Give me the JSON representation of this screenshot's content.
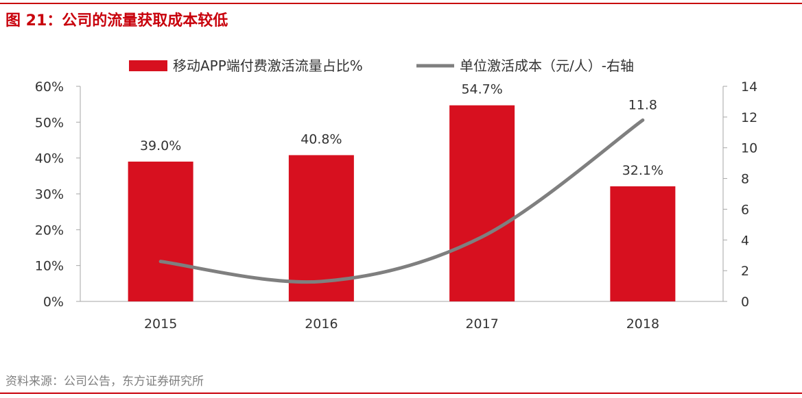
{
  "header": {
    "title": "图 21：公司的流量获取成本较低"
  },
  "footer": {
    "source": "资料来源：公司公告，东方证券研究所"
  },
  "chart_data": {
    "type": "bar",
    "categories": [
      "2015",
      "2016",
      "2017",
      "2018"
    ],
    "series": [
      {
        "name": "移动APP端付费激活流量占比%",
        "type": "bar",
        "axis": "left",
        "values": [
          39.0,
          40.8,
          54.7,
          32.1
        ],
        "labels": [
          "39.0%",
          "40.8%",
          "54.7%",
          "32.1%"
        ],
        "color": "#d7101f"
      },
      {
        "name": "单位激活成本（元/人）-右轴",
        "type": "line",
        "axis": "right",
        "values": [
          2.6,
          1.3,
          4.2,
          11.8
        ],
        "labels": [
          "",
          "",
          "",
          "11.8"
        ],
        "color": "#7f7f7f"
      }
    ],
    "y_left": {
      "min": 0,
      "max": 60,
      "ticks": [
        "0%",
        "10%",
        "20%",
        "30%",
        "40%",
        "50%",
        "60%"
      ]
    },
    "y_right": {
      "min": 0,
      "max": 14,
      "ticks": [
        "0",
        "2",
        "4",
        "6",
        "8",
        "10",
        "12",
        "14"
      ]
    },
    "legend_position": "top",
    "grid": false
  }
}
